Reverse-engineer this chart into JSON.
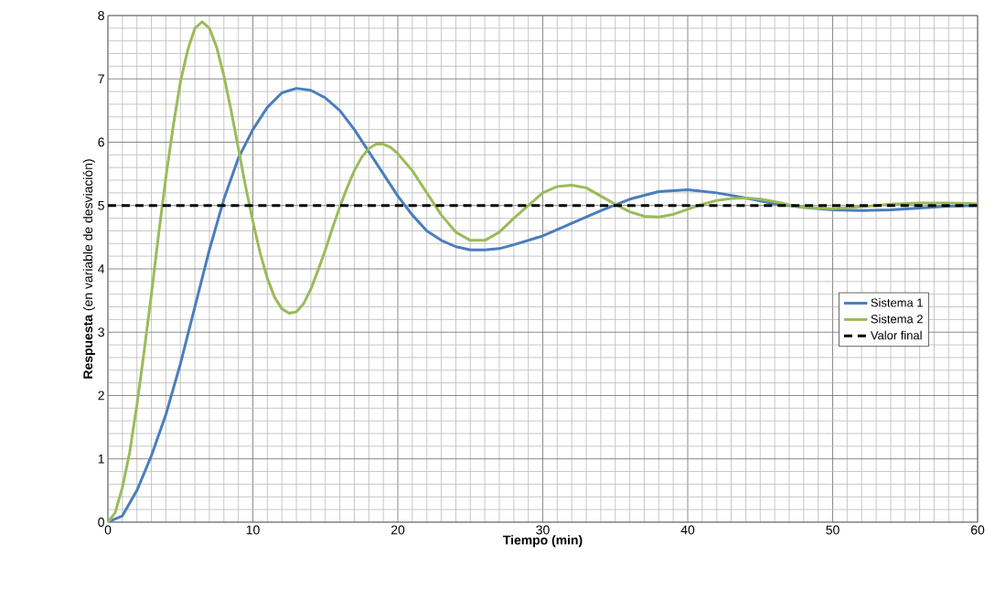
{
  "chart_data": {
    "type": "line",
    "xlabel": "Tiempo (min)",
    "ylabel": "**Respuesta** (en variable de desviación)",
    "xlim": [
      0,
      60
    ],
    "ylim": [
      0,
      8
    ],
    "xticks": [
      0,
      10,
      20,
      30,
      40,
      50,
      60
    ],
    "yticks": [
      0,
      1,
      2,
      3,
      4,
      5,
      6,
      7,
      8
    ],
    "grid": true,
    "legend": "right",
    "marker": "none",
    "series": [
      {
        "name": "Sistema 1",
        "color": "#4a7ebb",
        "line_style": "solid",
        "x": [
          0,
          1,
          2,
          3,
          4,
          5,
          6,
          7,
          8,
          9,
          10,
          11,
          12,
          13,
          14,
          15,
          16,
          17,
          18,
          19,
          20,
          21,
          22,
          23,
          24,
          25,
          26,
          27,
          28,
          30,
          32,
          34,
          36,
          38,
          40,
          42,
          44,
          46,
          48,
          50,
          52,
          54,
          56,
          58,
          60
        ],
        "values": [
          0,
          0.1,
          0.5,
          1.05,
          1.7,
          2.5,
          3.4,
          4.3,
          5.1,
          5.75,
          6.2,
          6.55,
          6.78,
          6.85,
          6.82,
          6.7,
          6.5,
          6.2,
          5.85,
          5.5,
          5.15,
          4.85,
          4.6,
          4.45,
          4.35,
          4.3,
          4.3,
          4.32,
          4.38,
          4.52,
          4.72,
          4.92,
          5.1,
          5.22,
          5.25,
          5.2,
          5.12,
          5.03,
          4.97,
          4.93,
          4.92,
          4.93,
          4.96,
          4.99,
          5.0
        ]
      },
      {
        "name": "Sistema 2",
        "color": "#9bbb59",
        "line_style": "solid",
        "x": [
          0,
          0.5,
          1,
          1.5,
          2,
          2.5,
          3,
          3.5,
          4,
          4.5,
          5,
          5.5,
          6,
          6.5,
          7,
          7.5,
          8,
          8.5,
          9,
          9.5,
          10,
          10.5,
          11,
          11.5,
          12,
          12.5,
          13,
          13.5,
          14,
          14.5,
          15,
          15.5,
          16,
          16.5,
          17,
          17.5,
          18,
          18.5,
          19,
          19.5,
          20,
          21,
          22,
          23,
          24,
          25,
          26,
          27,
          28,
          29,
          30,
          31,
          32,
          33,
          34,
          35,
          36,
          37,
          38,
          39,
          40,
          41,
          42,
          43,
          44,
          45,
          46,
          47,
          48,
          50,
          52,
          54,
          56,
          58,
          60
        ],
        "values": [
          0,
          0.15,
          0.55,
          1.1,
          1.85,
          2.7,
          3.6,
          4.55,
          5.45,
          6.25,
          6.95,
          7.45,
          7.8,
          7.9,
          7.8,
          7.5,
          7.05,
          6.5,
          5.9,
          5.3,
          4.75,
          4.25,
          3.85,
          3.55,
          3.37,
          3.3,
          3.32,
          3.45,
          3.68,
          3.98,
          4.3,
          4.65,
          4.98,
          5.28,
          5.55,
          5.76,
          5.9,
          5.97,
          5.97,
          5.92,
          5.82,
          5.55,
          5.2,
          4.85,
          4.58,
          4.45,
          4.45,
          4.58,
          4.8,
          5.0,
          5.2,
          5.3,
          5.32,
          5.28,
          5.15,
          5.02,
          4.9,
          4.83,
          4.82,
          4.86,
          4.94,
          5.02,
          5.08,
          5.11,
          5.12,
          5.1,
          5.06,
          5.01,
          4.97,
          4.95,
          4.98,
          5.02,
          5.04,
          5.04,
          5.03
        ]
      },
      {
        "name": "Valor final",
        "color": "#000000",
        "line_style": "dashed",
        "x": [
          0,
          60
        ],
        "values": [
          5,
          5
        ]
      }
    ]
  }
}
